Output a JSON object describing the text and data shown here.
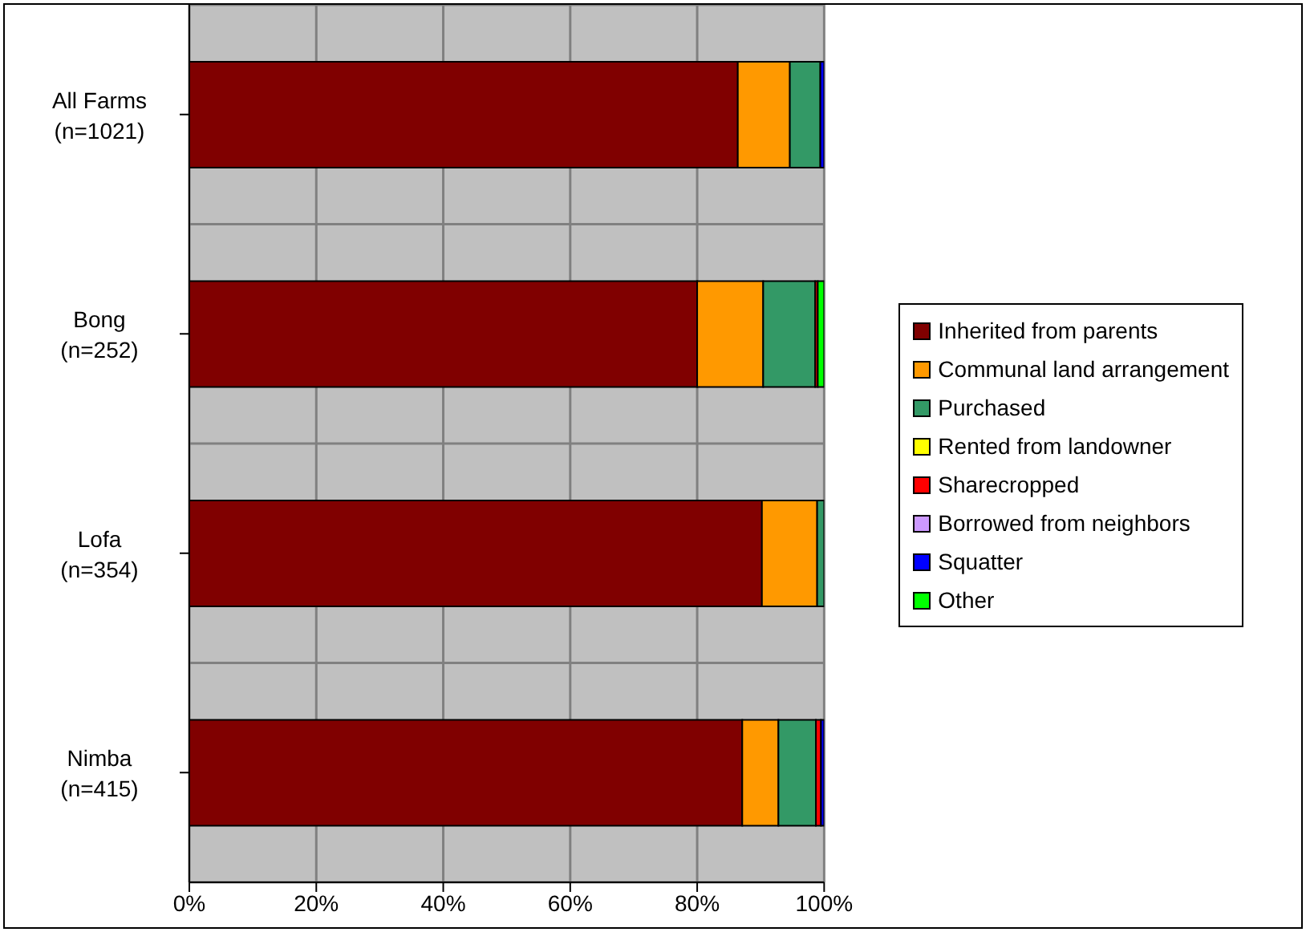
{
  "chart_data": {
    "type": "bar",
    "orientation": "horizontal",
    "stacked": true,
    "categories": [
      "All Farms (n=1021)",
      "Bong (n=252)",
      "Lofa (n=354)",
      "Nimba (n=415)"
    ],
    "series": [
      {
        "name": "Inherited from parents",
        "color": "#800000",
        "values": [
          86.4,
          80.0,
          90.2,
          87.1
        ]
      },
      {
        "name": "Communal land arrangement",
        "color": "#ff9900",
        "values": [
          8.2,
          10.4,
          8.7,
          5.7
        ]
      },
      {
        "name": "Purchased",
        "color": "#339966",
        "values": [
          4.8,
          8.2,
          1.1,
          5.9
        ]
      },
      {
        "name": "Rented from landowner",
        "color": "#ffff00",
        "values": [
          0,
          0,
          0,
          0
        ]
      },
      {
        "name": "Sharecropped",
        "color": "#ff0000",
        "values": [
          0,
          0.4,
          0,
          0.8
        ]
      },
      {
        "name": "Borrowed from neighbors",
        "color": "#cc99ff",
        "values": [
          0,
          0,
          0,
          0
        ]
      },
      {
        "name": "Squatter",
        "color": "#0000ff",
        "values": [
          0.6,
          0,
          0,
          0.5
        ]
      },
      {
        "name": "Other",
        "color": "#00ff00",
        "values": [
          0,
          1.0,
          0,
          0
        ]
      }
    ],
    "xlim": [
      0,
      100
    ],
    "xticks": [
      {
        "value": 0,
        "label": "0%"
      },
      {
        "value": 20,
        "label": "20%"
      },
      {
        "value": 40,
        "label": "40%"
      },
      {
        "value": 60,
        "label": "60%"
      },
      {
        "value": 80,
        "label": "80%"
      },
      {
        "value": 100,
        "label": "100%"
      }
    ],
    "grid": true,
    "legend": "right"
  }
}
